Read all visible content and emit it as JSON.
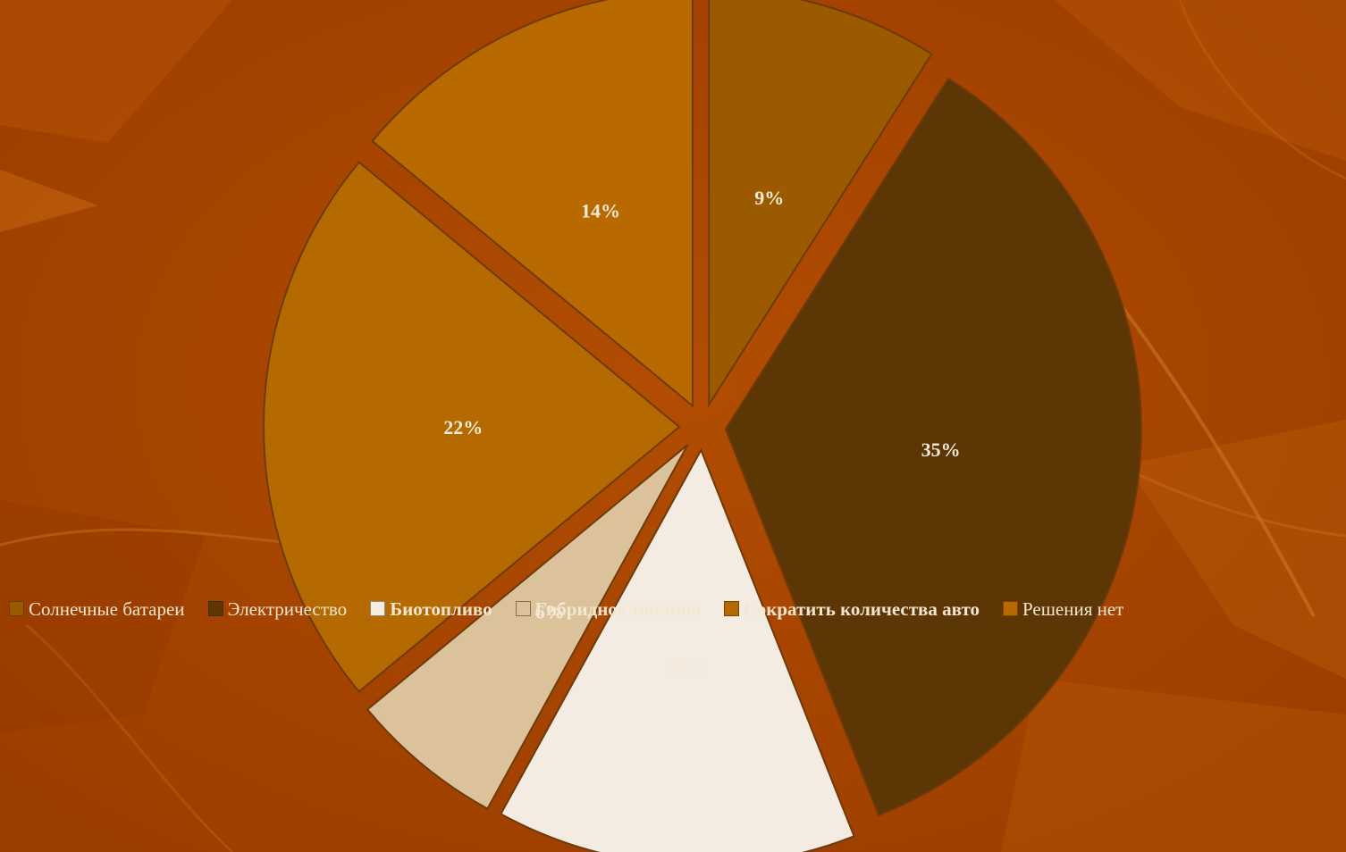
{
  "chart_data": {
    "type": "pie",
    "exploded": true,
    "start_angle_deg": 0,
    "direction": "clockwise",
    "slices": [
      {
        "label": "Солнечные батареи",
        "value": 9,
        "display": "9%",
        "color": "#9b5a00"
      },
      {
        "label": "Электричество",
        "value": 35,
        "display": "35%",
        "color": "#5c3605"
      },
      {
        "label": "Биотопливо",
        "value": 14,
        "display": "14%",
        "color": "#f4ece2"
      },
      {
        "label": "Гибридное топливо",
        "value": 6,
        "display": "6%",
        "color": "#dcc29a"
      },
      {
        "label": "Сократить количества авто",
        "value": 22,
        "display": "22%",
        "color": "#b46a00"
      },
      {
        "label": "Решения нет",
        "value": 14,
        "display": "14%",
        "color": "#b86a00"
      }
    ],
    "legend": {
      "placement": "bottom",
      "entries": [
        {
          "text": "Солнечные батареи",
          "bold": false
        },
        {
          "text": "Электричество",
          "bold": false
        },
        {
          "text": "Биотопливо",
          "bold": true
        },
        {
          "text": "Гибридное топливо",
          "bold": true
        },
        {
          "text": "Сократить количества авто",
          "bold": true
        },
        {
          "text": "Решения нет",
          "bold": false
        }
      ]
    },
    "title": "",
    "background_color": "#a64400",
    "label_color": "#f4ead8"
  }
}
